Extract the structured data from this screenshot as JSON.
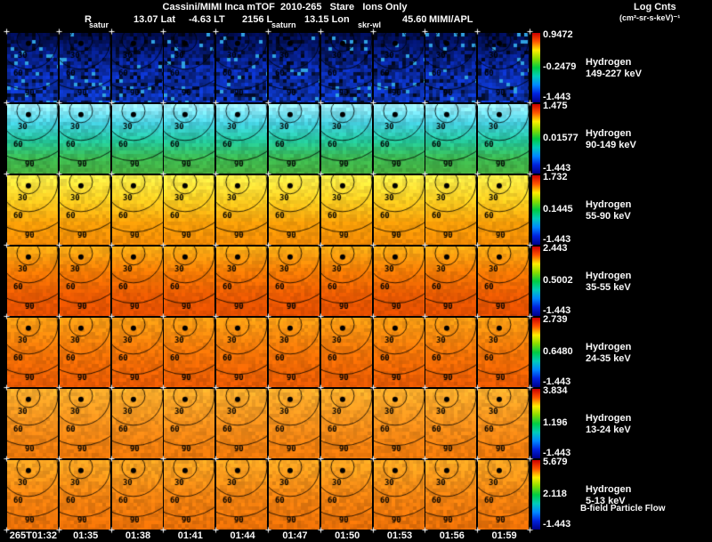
{
  "header": {
    "title": "Cassini/MIMI Inca mTOF  2010-265   Stare   Ions Only",
    "units_label_line1": "Log Cnts",
    "units_label_line2": "(cm²-sr-s-keV)⁻¹"
  },
  "status_line": {
    "segments": [
      {
        "text": "R",
        "style": "main"
      },
      {
        "text": "satur",
        "style": "sub"
      },
      {
        "text": "13.07 Lat",
        "style": "main"
      },
      {
        "text": "-4.63 LT",
        "style": "main"
      },
      {
        "text": "2156 L",
        "style": "main"
      },
      {
        "text": "saturn",
        "style": "sub"
      },
      {
        "text": "13.15 Lon",
        "style": "main"
      },
      {
        "text": "skr-wl",
        "style": "sub"
      },
      {
        "text": "45.60",
        "style": "main"
      },
      {
        "text": "MIMI/APL",
        "style": "main"
      }
    ]
  },
  "rows": [
    {
      "species": "Hydrogen",
      "energy": "149-227 keV",
      "colorbar": {
        "max": "0.9472",
        "mid": "-0.2479",
        "min": "-1.443"
      },
      "palette": [
        "#000c50",
        "#0a2aa8",
        "#0c34b4"
      ],
      "jitter": 30,
      "dark_patches": true,
      "speck": "#30a0e0"
    },
    {
      "species": "Hydrogen",
      "energy": "90-149 keV",
      "colorbar": {
        "max": "1.475",
        "mid": "0.01577",
        "min": "-1.443"
      },
      "palette": [
        "#9ceefc",
        "#44ccdc",
        "#22c49a",
        "#3cb850",
        "#46a83c"
      ],
      "jitter": 10,
      "dark_patches": false,
      "speck": null
    },
    {
      "species": "Hydrogen",
      "energy": "55-90 keV",
      "colorbar": {
        "max": "1.732",
        "mid": "0.1445",
        "min": "-1.443"
      },
      "palette": [
        "#f8ec48",
        "#f8cc20",
        "#f49c08",
        "#ee8604"
      ],
      "jitter": 8,
      "dark_patches": false,
      "speck": null
    },
    {
      "species": "Hydrogen",
      "energy": "35-55 keV",
      "colorbar": {
        "max": "2.443",
        "mid": "0.5002",
        "min": "-1.443"
      },
      "palette": [
        "#f8aa14",
        "#f27a04",
        "#e85a02",
        "#e24c00"
      ],
      "jitter": 8,
      "dark_patches": false,
      "speck": null
    },
    {
      "species": "Hydrogen",
      "energy": "24-35 keV",
      "colorbar": {
        "max": "2.739",
        "mid": "0.6480",
        "min": "-1.443"
      },
      "palette": [
        "#f89c14",
        "#ee7006",
        "#e65602"
      ],
      "jitter": 9,
      "dark_patches": false,
      "speck": null
    },
    {
      "species": "Hydrogen",
      "energy": "13-24 keV",
      "colorbar": {
        "max": "3.834",
        "mid": "1.196",
        "min": "-1.443"
      },
      "palette": [
        "#f8ac2c",
        "#f08c1a",
        "#ea7408"
      ],
      "jitter": 9,
      "dark_patches": false,
      "speck": null
    },
    {
      "species": "Hydrogen",
      "energy": "5-13 keV",
      "colorbar": {
        "max": "5.679",
        "mid": "2.118",
        "min": "-1.443"
      },
      "palette": [
        "#f8a422",
        "#ee8010",
        "#e66c06"
      ],
      "jitter": 10,
      "dark_patches": false,
      "speck": null
    }
  ],
  "contour_labels": [
    "30",
    "60",
    "90"
  ],
  "time_axis": [
    "265T01:32",
    "01:35",
    "01:38",
    "01:41",
    "01:44",
    "01:47",
    "01:50",
    "01:53",
    "01:56",
    "01:59"
  ],
  "footer": {
    "note": "B-field Particle Flow"
  },
  "colors": {
    "background": "#000000",
    "text": "#f8f8f8",
    "tick": "#ffffff",
    "contour": "#000000",
    "colorbar_stops": [
      "#cc0000",
      "#ff5500",
      "#ffee00",
      "#88dd00",
      "#00cc44",
      "#00ccbb",
      "#0088ff",
      "#0022dd",
      "#000088"
    ]
  },
  "grid": {
    "columns": 10,
    "rows": 7
  },
  "chart_data": {
    "type": "heatmap",
    "title": "Cassini/MIMI Inca mTOF 2010-265 Stare Ions Only",
    "subtitle": "R 13.07 Lat -4.63 LT 2156 L 13.15 Lon 45.60 MIMI/APL",
    "panel_grid": {
      "rows": 7,
      "columns": 10
    },
    "x": [
      "265T01:32",
      "01:35",
      "01:38",
      "01:41",
      "01:44",
      "01:47",
      "01:50",
      "01:53",
      "01:56",
      "01:59"
    ],
    "series": [
      {
        "name": "Hydrogen 149-227 keV",
        "scale_log_cnts": {
          "max": 0.9472,
          "mid": -0.2479,
          "min": -1.443
        }
      },
      {
        "name": "Hydrogen 90-149 keV",
        "scale_log_cnts": {
          "max": 1.475,
          "mid": 0.01577,
          "min": -1.443
        }
      },
      {
        "name": "Hydrogen 55-90 keV",
        "scale_log_cnts": {
          "max": 1.732,
          "mid": 0.1445,
          "min": -1.443
        }
      },
      {
        "name": "Hydrogen 35-55 keV",
        "scale_log_cnts": {
          "max": 2.443,
          "mid": 0.5002,
          "min": -1.443
        }
      },
      {
        "name": "Hydrogen 24-35 keV",
        "scale_log_cnts": {
          "max": 2.739,
          "mid": 0.648,
          "min": -1.443
        }
      },
      {
        "name": "Hydrogen 13-24 keV",
        "scale_log_cnts": {
          "max": 3.834,
          "mid": 1.196,
          "min": -1.443
        }
      },
      {
        "name": "Hydrogen 5-13 keV",
        "scale_log_cnts": {
          "max": 5.679,
          "mid": 2.118,
          "min": -1.443
        }
      }
    ],
    "colorbar_label": "Log Cnts (cm²-sr-s-keV)⁻¹",
    "contour_angle_labels": [
      30,
      60,
      90
    ],
    "annotation": "B-field Particle Flow",
    "legend_position": "right",
    "grid_on": false
  }
}
